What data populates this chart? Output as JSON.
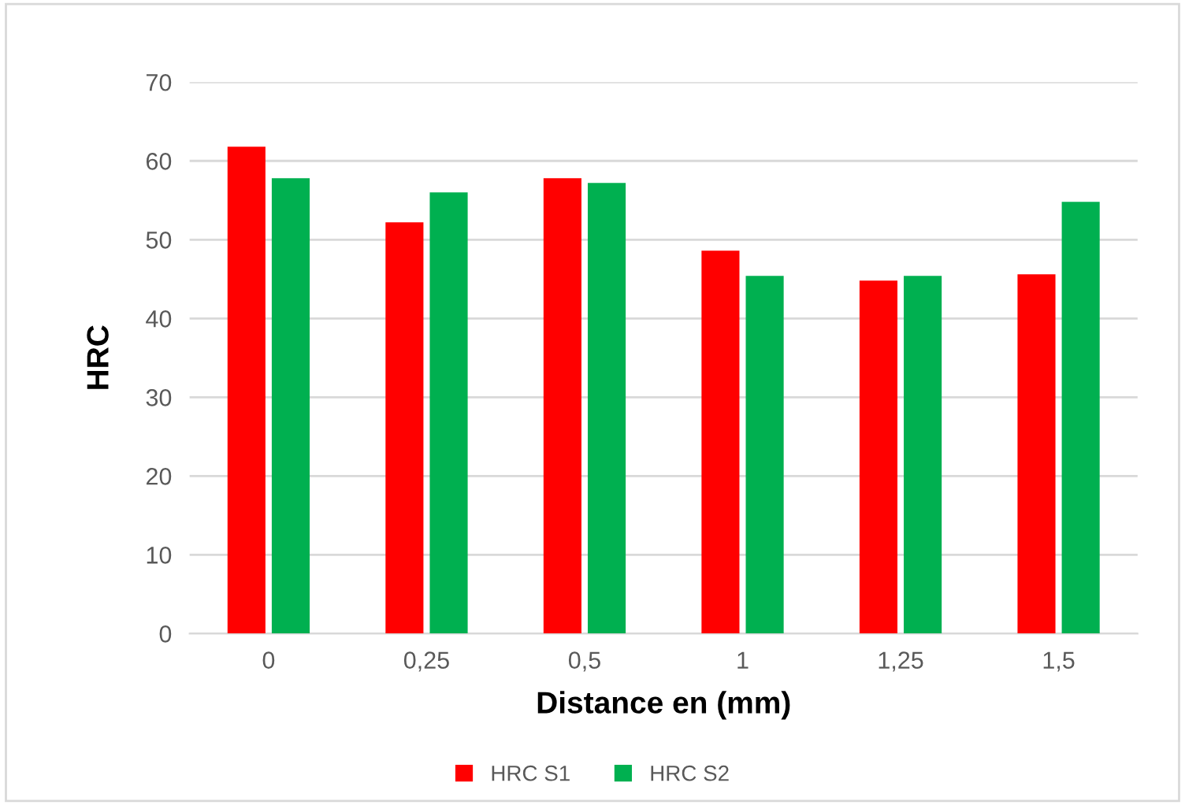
{
  "chart_data": {
    "type": "bar",
    "xlabel": "Distance en (mm)",
    "ylabel": "HRC",
    "categories": [
      "0",
      "0,25",
      "0,5",
      "1",
      "1,25",
      "1,5"
    ],
    "series": [
      {
        "name": "HRC S1",
        "color": "#ff0000",
        "values": [
          61.8,
          52.2,
          57.8,
          48.6,
          44.8,
          45.6
        ]
      },
      {
        "name": "HRC S2",
        "color": "#00b050",
        "values": [
          57.8,
          56.0,
          57.2,
          45.4,
          45.4,
          54.8
        ]
      }
    ],
    "ylim": [
      0,
      70
    ],
    "yticks": [
      0,
      10,
      20,
      30,
      40,
      50,
      60,
      70
    ],
    "grid": "y",
    "legend": "bottom"
  }
}
